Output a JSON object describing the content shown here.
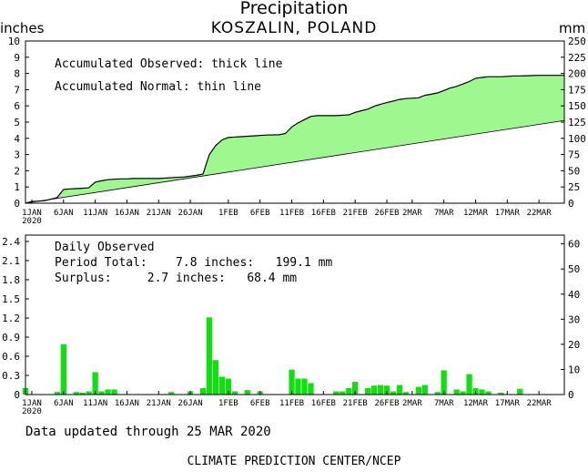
{
  "title": "Precipitation",
  "subtitle": "KOSZALIN, POLAND",
  "left_unit": "inches",
  "right_unit": "mm",
  "top_notes": {
    "observed": "Accumulated Observed: thick line",
    "normal": "Accumulated Normal: thin line"
  },
  "bottom_notes": {
    "heading": "Daily Observed",
    "period_total": "Period Total:    7.8 inches:   199.1 mm",
    "surplus": "Surplus:     2.7 inches:   68.4 mm"
  },
  "footer": {
    "updated": "Data updated through 25 MAR 2020",
    "credit": "CLIMATE PREDICTION CENTER/NCEP"
  },
  "chart_data": [
    {
      "type": "area",
      "y_left_ticks": [
        "0",
        "1",
        "2",
        "3",
        "4",
        "5",
        "6",
        "7",
        "8",
        "9",
        "10"
      ],
      "y_right_ticks": [
        "0",
        "25",
        "50",
        "75",
        "100",
        "125",
        "150",
        "175",
        "200",
        "225",
        "250"
      ],
      "ylim_inches": [
        0,
        10
      ],
      "x_ticks": [
        {
          "day": 0,
          "label": "1JAN",
          "sub": "2020"
        },
        {
          "day": 5,
          "label": "6JAN",
          "sub": ""
        },
        {
          "day": 10,
          "label": "11JAN",
          "sub": ""
        },
        {
          "day": 15,
          "label": "16JAN",
          "sub": ""
        },
        {
          "day": 20,
          "label": "21JAN",
          "sub": ""
        },
        {
          "day": 25,
          "label": "26JAN",
          "sub": ""
        },
        {
          "day": 31,
          "label": "1FEB",
          "sub": ""
        },
        {
          "day": 36,
          "label": "6FEB",
          "sub": ""
        },
        {
          "day": 41,
          "label": "11FEB",
          "sub": ""
        },
        {
          "day": 46,
          "label": "16FEB",
          "sub": ""
        },
        {
          "day": 51,
          "label": "21FEB",
          "sub": ""
        },
        {
          "day": 56,
          "label": "26FEB",
          "sub": ""
        },
        {
          "day": 60,
          "label": "2MAR",
          "sub": ""
        },
        {
          "day": 65,
          "label": "7MAR",
          "sub": ""
        },
        {
          "day": 70,
          "label": "12MAR",
          "sub": ""
        },
        {
          "day": 75,
          "label": "17MAR",
          "sub": ""
        },
        {
          "day": 80,
          "label": "22MAR",
          "sub": ""
        }
      ],
      "series": [
        {
          "kind": "accumulated_observed",
          "color": "#9ff78f",
          "points": [
            [
              -1,
              0
            ],
            [
              0,
              0.1
            ],
            [
              2,
              0.15
            ],
            [
              4,
              0.35
            ],
            [
              5,
              0.85
            ],
            [
              6,
              0.88
            ],
            [
              7,
              0.9
            ],
            [
              8,
              0.92
            ],
            [
              9,
              0.95
            ],
            [
              10,
              1.3
            ],
            [
              11,
              1.38
            ],
            [
              12,
              1.45
            ],
            [
              13,
              1.48
            ],
            [
              14,
              1.5
            ],
            [
              15,
              1.5
            ],
            [
              16,
              1.52
            ],
            [
              20,
              1.52
            ],
            [
              24,
              1.62
            ],
            [
              26,
              1.72
            ],
            [
              27,
              1.8
            ],
            [
              28,
              3.0
            ],
            [
              29,
              3.55
            ],
            [
              30,
              3.9
            ],
            [
              31,
              4.05
            ],
            [
              33,
              4.1
            ],
            [
              35,
              4.15
            ],
            [
              37,
              4.2
            ],
            [
              39,
              4.22
            ],
            [
              40,
              4.3
            ],
            [
              41,
              4.7
            ],
            [
              42,
              4.95
            ],
            [
              43,
              5.15
            ],
            [
              44,
              5.35
            ],
            [
              45,
              5.4
            ],
            [
              46,
              5.4
            ],
            [
              48,
              5.4
            ],
            [
              50,
              5.45
            ],
            [
              51,
              5.6
            ],
            [
              52,
              5.7
            ],
            [
              53,
              5.8
            ],
            [
              54,
              5.98
            ],
            [
              55,
              6.1
            ],
            [
              56,
              6.2
            ],
            [
              57,
              6.3
            ],
            [
              58,
              6.4
            ],
            [
              59,
              6.45
            ],
            [
              61,
              6.5
            ],
            [
              62,
              6.65
            ],
            [
              63,
              6.72
            ],
            [
              64,
              6.8
            ],
            [
              65,
              6.95
            ],
            [
              66,
              7.1
            ],
            [
              67,
              7.2
            ],
            [
              68,
              7.35
            ],
            [
              69,
              7.5
            ],
            [
              70,
              7.7
            ],
            [
              71,
              7.75
            ],
            [
              72,
              7.8
            ],
            [
              74,
              7.8
            ],
            [
              75,
              7.82
            ],
            [
              76,
              7.85
            ],
            [
              77,
              7.85
            ],
            [
              78,
              7.86
            ],
            [
              79,
              7.87
            ],
            [
              80,
              7.88
            ],
            [
              84,
              7.88
            ]
          ]
        },
        {
          "kind": "accumulated_normal",
          "color": "#000000",
          "points": [
            [
              -1,
              0
            ],
            [
              84,
              5.1
            ]
          ]
        }
      ]
    },
    {
      "type": "bar",
      "y_left_ticks": [
        "0",
        "0.3",
        "0.6",
        "0.9",
        "1.2",
        "1.5",
        "1.8",
        "2.1",
        "2.4"
      ],
      "y_right_ticks": [
        "0",
        "10",
        "20",
        "30",
        "40",
        "50",
        "60"
      ],
      "ylim_inches": [
        0,
        2.5
      ],
      "bar_color": "#10e010",
      "bars": [
        {
          "day": -1,
          "value": 0.1
        },
        {
          "day": 4,
          "value": 0.04
        },
        {
          "day": 5,
          "value": 0.79
        },
        {
          "day": 7,
          "value": 0.04
        },
        {
          "day": 8,
          "value": 0.03
        },
        {
          "day": 9,
          "value": 0.05
        },
        {
          "day": 10,
          "value": 0.35
        },
        {
          "day": 11,
          "value": 0.05
        },
        {
          "day": 12,
          "value": 0.08
        },
        {
          "day": 13,
          "value": 0.08
        },
        {
          "day": 22,
          "value": 0.04
        },
        {
          "day": 25,
          "value": 0.05
        },
        {
          "day": 27,
          "value": 0.1
        },
        {
          "day": 28,
          "value": 1.21
        },
        {
          "day": 29,
          "value": 0.54
        },
        {
          "day": 30,
          "value": 0.28
        },
        {
          "day": 31,
          "value": 0.25
        },
        {
          "day": 32,
          "value": 0.05
        },
        {
          "day": 34,
          "value": 0.07
        },
        {
          "day": 36,
          "value": 0.05
        },
        {
          "day": 41,
          "value": 0.39
        },
        {
          "day": 42,
          "value": 0.25
        },
        {
          "day": 43,
          "value": 0.25
        },
        {
          "day": 44,
          "value": 0.18
        },
        {
          "day": 48,
          "value": 0.05
        },
        {
          "day": 49,
          "value": 0.05
        },
        {
          "day": 50,
          "value": 0.1
        },
        {
          "day": 51,
          "value": 0.2
        },
        {
          "day": 53,
          "value": 0.1
        },
        {
          "day": 54,
          "value": 0.14
        },
        {
          "day": 55,
          "value": 0.15
        },
        {
          "day": 56,
          "value": 0.14
        },
        {
          "day": 57,
          "value": 0.05
        },
        {
          "day": 58,
          "value": 0.15
        },
        {
          "day": 59,
          "value": 0.04
        },
        {
          "day": 61,
          "value": 0.12
        },
        {
          "day": 62,
          "value": 0.15
        },
        {
          "day": 64,
          "value": 0.04
        },
        {
          "day": 65,
          "value": 0.38
        },
        {
          "day": 67,
          "value": 0.08
        },
        {
          "day": 68,
          "value": 0.05
        },
        {
          "day": 69,
          "value": 0.32
        },
        {
          "day": 70,
          "value": 0.1
        },
        {
          "day": 71,
          "value": 0.08
        },
        {
          "day": 72,
          "value": 0.05
        },
        {
          "day": 74,
          "value": 0.03
        },
        {
          "day": 77,
          "value": 0.09
        }
      ]
    }
  ]
}
